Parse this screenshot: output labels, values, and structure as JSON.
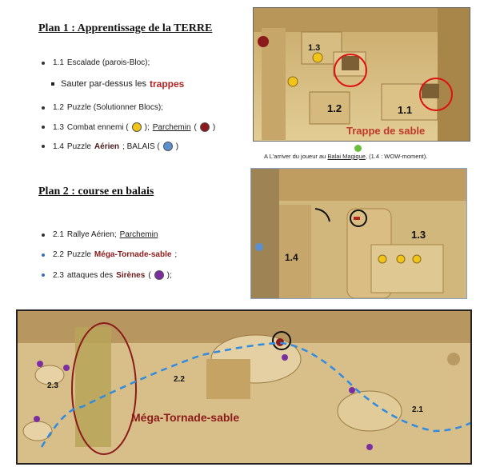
{
  "plan1": {
    "title": "Plan 1 : Apprentissage  de  la TERRE",
    "items": [
      {
        "num": "1.1",
        "text": "Escalade (parois-Bloc);"
      },
      {
        "sub_prefix": "Sauter par-dessus les",
        "sub_emph": "trappes"
      },
      {
        "num": "1.2",
        "text": "Puzzle (Solutionner Blocs);"
      },
      {
        "num": "1.3",
        "text": "Combat ennemi (",
        "link": "Parchemin"
      },
      {
        "num": "1.4",
        "text_a": "Puzzle",
        "text_b": "Aérien",
        "text_c": "; BALAIS ("
      }
    ]
  },
  "plan2": {
    "title": "Plan 2 : course en balais",
    "items": [
      {
        "num": "2.1",
        "text": "Rallye Aérien;",
        "link": "Parchemin"
      },
      {
        "num": "2.2",
        "text": "Puzzle",
        "emph": "Méga-Tornade-sable",
        "tail": ";"
      },
      {
        "num": "2.3",
        "text": "attaques  des",
        "emph": "Sirènes",
        "tail": ");"
      }
    ]
  },
  "panel1": {
    "label_13": "1.3",
    "label_12": "1.2",
    "label_11": "1.1",
    "caption": "Trappe de sable"
  },
  "caption_mid": {
    "prefix": "A L'arriver du joueur au",
    "link": "Balai Magique",
    "suffix": ",    (1.4 : WOW-moment)."
  },
  "panel2": {
    "label_13": "1.3",
    "label_14": "1.4"
  },
  "panel3": {
    "label_23": "2.3",
    "label_22": "2.2",
    "label_21": "2.1",
    "caption": "Méga-Tornade-sable"
  },
  "colors": {
    "red": "#b22222",
    "yellow": "#f0c419",
    "darkred": "#8b1a1a",
    "blue": "#5b8fd0",
    "purple": "#7a2ea0",
    "path": "#2f8be0",
    "sand": "#d9c08a"
  }
}
